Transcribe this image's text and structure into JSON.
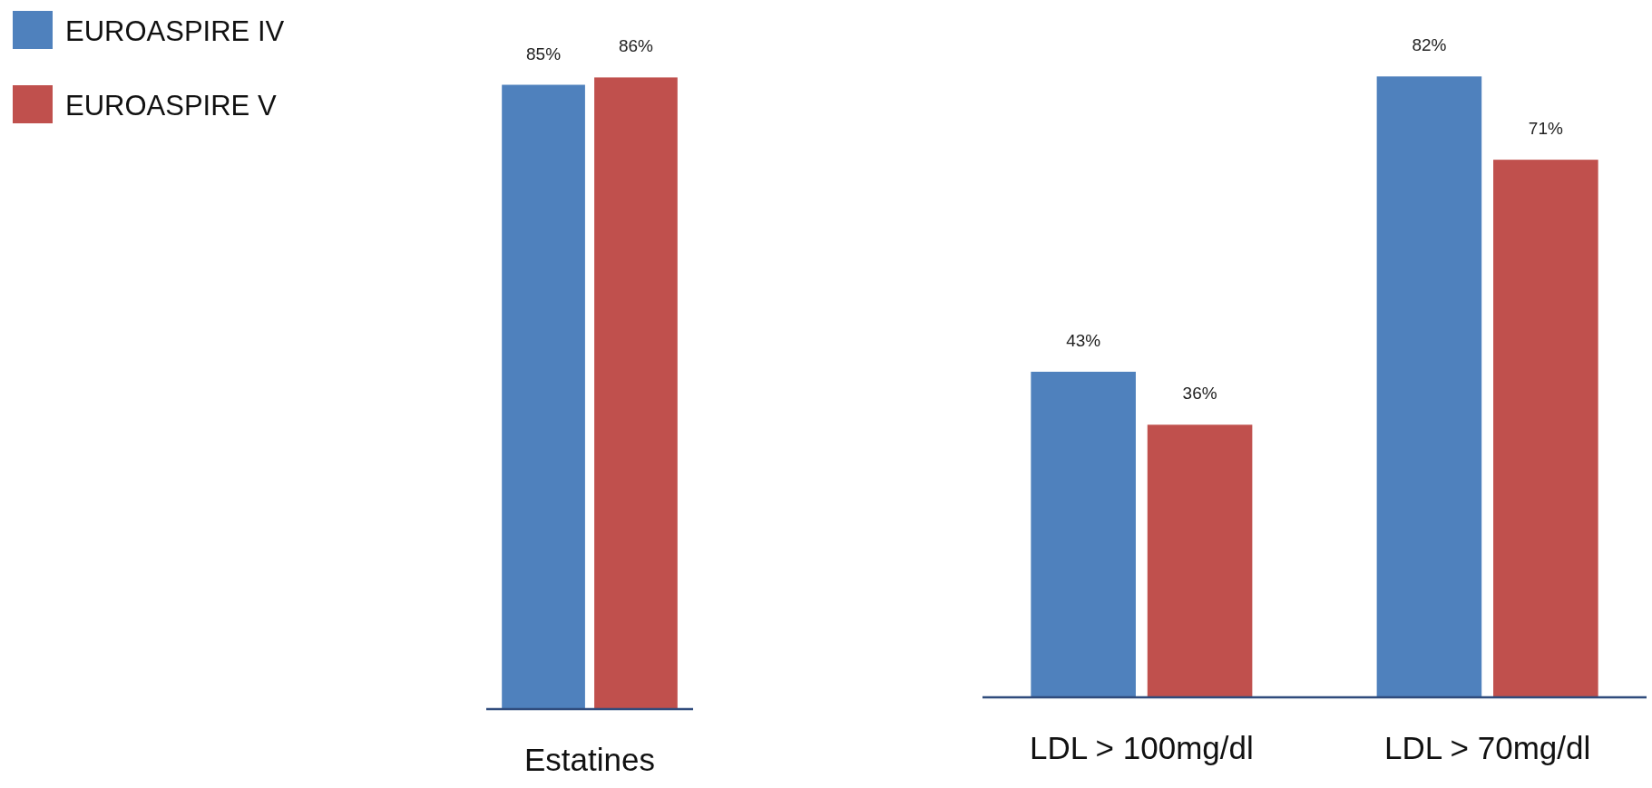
{
  "chart_data": [
    {
      "type": "bar",
      "categories": [
        "Estatines"
      ],
      "legend": "top left",
      "series": [
        {
          "name": "EUROASPIRE IV",
          "color": "#4f81bd",
          "values": [
            85
          ],
          "value_labels": [
            "85%"
          ]
        },
        {
          "name": "EUROASPIRE V",
          "color": "#c0504d",
          "values": [
            86
          ],
          "value_labels": [
            "86%"
          ]
        }
      ]
    },
    {
      "type": "bar",
      "categories": [
        "LDL > 100mg/dl",
        "LDL > 70mg/dl"
      ],
      "series": [
        {
          "color": "#4f81bd",
          "values": [
            43,
            82
          ],
          "value_labels": [
            "43%",
            "82%"
          ]
        },
        {
          "color": "#c0504d",
          "values": [
            36,
            71
          ],
          "value_labels": [
            "36%",
            "71%"
          ]
        }
      ]
    }
  ]
}
